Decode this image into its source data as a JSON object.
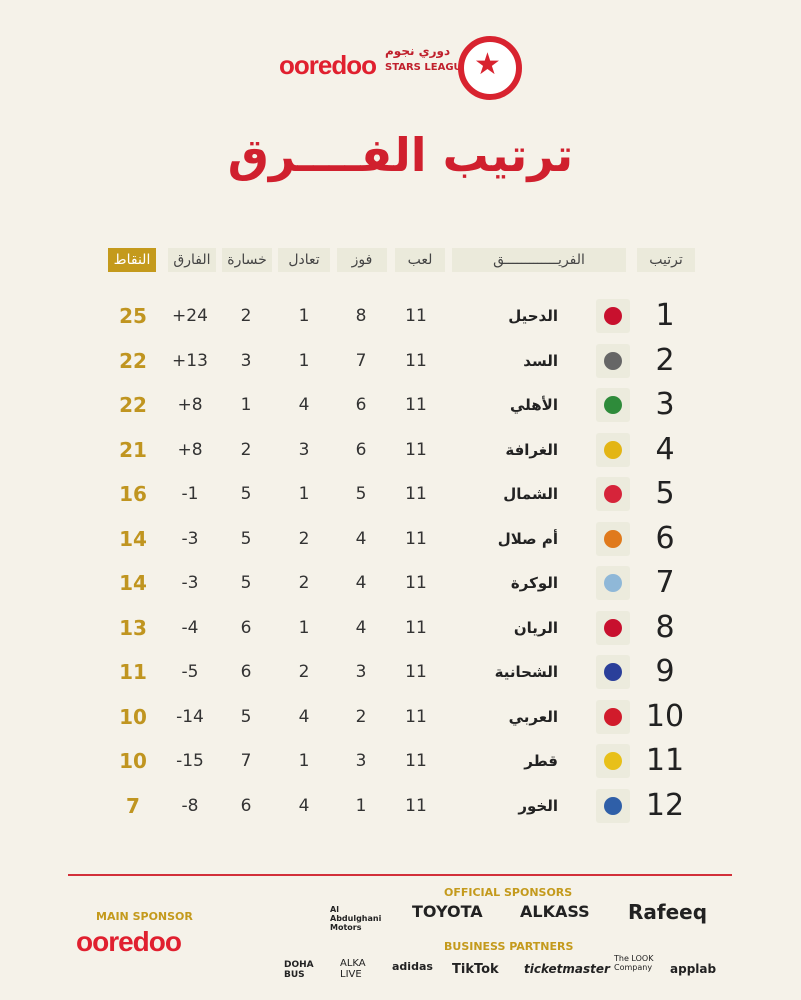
{
  "header": {
    "brand": "ooredoo",
    "league_ar": "دوري نجوم",
    "league_en": "STARS LEAGUE"
  },
  "title": "ترتيب الفــــرق",
  "columns": {
    "rank": "ترتيب",
    "team": "الفريـــــــــــــق",
    "played": "لعب",
    "won": "فوز",
    "drawn": "تعادل",
    "lost": "خسارة",
    "diff": "الفارق",
    "points": "النقاط"
  },
  "colors": {
    "accent": "#d0202e",
    "gold": "#c49a1c"
  },
  "rows": [
    {
      "rank": "1",
      "team": "الدحيل",
      "played": "11",
      "won": "8",
      "drawn": "1",
      "lost": "2",
      "diff": "+24",
      "points": "25",
      "crest": "#c8102e"
    },
    {
      "rank": "2",
      "team": "السد",
      "played": "11",
      "won": "7",
      "drawn": "1",
      "lost": "3",
      "diff": "+13",
      "points": "22",
      "crest": "#666666"
    },
    {
      "rank": "3",
      "team": "الأهلي",
      "played": "11",
      "won": "6",
      "drawn": "4",
      "lost": "1",
      "diff": "+8",
      "points": "22",
      "crest": "#2e8b3a"
    },
    {
      "rank": "4",
      "team": "الغرافة",
      "played": "11",
      "won": "6",
      "drawn": "3",
      "lost": "2",
      "diff": "+8",
      "points": "21",
      "crest": "#e3b515"
    },
    {
      "rank": "5",
      "team": "الشمال",
      "played": "11",
      "won": "5",
      "drawn": "1",
      "lost": "5",
      "diff": "-1",
      "points": "16",
      "crest": "#d6243a"
    },
    {
      "rank": "6",
      "team": "أم صلال",
      "played": "11",
      "won": "4",
      "drawn": "2",
      "lost": "5",
      "diff": "-3",
      "points": "14",
      "crest": "#e07a1c"
    },
    {
      "rank": "7",
      "team": "الوكرة",
      "played": "11",
      "won": "4",
      "drawn": "2",
      "lost": "5",
      "diff": "-3",
      "points": "14",
      "crest": "#8fb8d8"
    },
    {
      "rank": "8",
      "team": "الريان",
      "played": "11",
      "won": "4",
      "drawn": "1",
      "lost": "6",
      "diff": "-4",
      "points": "13",
      "crest": "#c8102e"
    },
    {
      "rank": "9",
      "team": "الشحانية",
      "played": "11",
      "won": "3",
      "drawn": "2",
      "lost": "6",
      "diff": "-5",
      "points": "11",
      "crest": "#2a3f9a"
    },
    {
      "rank": "10",
      "team": "العربي",
      "played": "11",
      "won": "2",
      "drawn": "4",
      "lost": "5",
      "diff": "-14",
      "points": "10",
      "crest": "#d11b2b"
    },
    {
      "rank": "11",
      "team": "قطر",
      "played": "11",
      "won": "3",
      "drawn": "1",
      "lost": "7",
      "diff": "-15",
      "points": "10",
      "crest": "#e8c019"
    },
    {
      "rank": "12",
      "team": "الخور",
      "played": "11",
      "won": "1",
      "drawn": "4",
      "lost": "6",
      "diff": "-8",
      "points": "7",
      "crest": "#2f5fa8"
    }
  ],
  "footer": {
    "main_sponsor_label": "MAIN SPONSOR",
    "main_sponsor": "ooredoo",
    "official_label": "OFFICIAL SPONSORS",
    "official": [
      "Al Abdulghani Motors",
      "TOYOTA",
      "ALKASS",
      "Rafeeq"
    ],
    "partners_label": "BUSINESS PARTNERS",
    "partners": [
      "DOHA BUS",
      "ALKA LIVE",
      "adidas",
      "TikTok",
      "ticketmaster",
      "The LOOK Company",
      "applab"
    ]
  }
}
